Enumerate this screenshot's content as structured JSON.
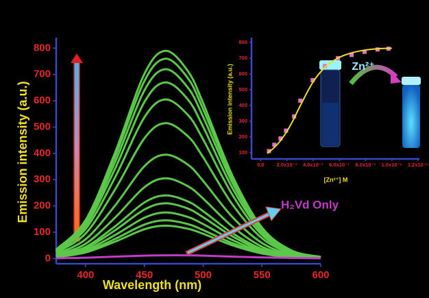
{
  "chart_data": [
    {
      "type": "line",
      "x_label": "Wavelength (nm)",
      "y_label": "Emission intensity (a.u.)",
      "x": [
        375,
        400,
        425,
        450,
        468,
        487,
        500,
        525,
        550,
        575,
        600
      ],
      "xlim": [
        375,
        600
      ],
      "xticks": [
        400,
        450,
        500,
        550,
        600
      ],
      "ylim": [
        -20,
        840
      ],
      "yticks": [
        0,
        100,
        200,
        300,
        400,
        500,
        600,
        700,
        800
      ],
      "grid": false,
      "series": [
        {
          "color": "#5cc84a",
          "values": [
            34,
            146,
            402,
            702,
            790,
            713,
            591,
            314,
            118,
            31,
            6
          ]
        },
        {
          "color": "#5cc84a",
          "values": [
            32,
            141,
            387,
            675,
            760,
            686,
            568,
            302,
            113,
            30,
            5
          ]
        },
        {
          "color": "#5cc84a",
          "values": [
            31,
            133,
            366,
            639,
            720,
            650,
            539,
            287,
            107,
            28,
            5
          ]
        },
        {
          "color": "#5cc84a",
          "values": [
            28,
            124,
            341,
            595,
            670,
            605,
            501,
            267,
            100,
            26,
            5
          ]
        },
        {
          "color": "#5cc84a",
          "values": [
            26,
            112,
            308,
            537,
            605,
            546,
            453,
            241,
            90,
            24,
            4
          ]
        },
        {
          "color": "#5cc84a",
          "values": [
            22,
            95,
            262,
            457,
            515,
            465,
            385,
            205,
            77,
            20,
            4
          ]
        },
        {
          "color": "#5cc84a",
          "values": [
            17,
            73,
            201,
            351,
            395,
            357,
            295,
            157,
            59,
            15,
            3
          ]
        },
        {
          "color": "#5cc84a",
          "values": [
            13,
            56,
            155,
            271,
            305,
            275,
            228,
            121,
            45,
            12,
            2
          ]
        },
        {
          "color": "#5cc84a",
          "values": [
            10,
            44,
            122,
            213,
            240,
            217,
            180,
            96,
            36,
            9,
            2
          ]
        },
        {
          "color": "#5cc84a",
          "values": [
            9,
            39,
            107,
            186,
            210,
            190,
            157,
            84,
            31,
            8,
            2
          ]
        },
        {
          "color": "#5cc84a",
          "values": [
            7,
            32,
            89,
            155,
            175,
            158,
            131,
            70,
            26,
            7,
            1
          ]
        },
        {
          "color": "#5cc84a",
          "values": [
            6,
            27,
            74,
            129,
            145,
            131,
            108,
            58,
            22,
            6,
            1
          ]
        },
        {
          "color": "#5cc84a",
          "values": [
            5,
            23,
            64,
            111,
            125,
            113,
            94,
            50,
            19,
            5,
            1
          ]
        },
        {
          "name": "H₂Vd Only",
          "color": "#c23cc8",
          "values": [
            1,
            3,
            7,
            11,
            12,
            12,
            11,
            7,
            4,
            2,
            1
          ]
        }
      ]
    },
    {
      "type": "scatter",
      "x_label": "[Zn²⁺] M",
      "y_label": "Emission intensity (a.u.)",
      "annotation": "Zn²⁺",
      "xlim": [
        -7e-08,
        1.21e-06
      ],
      "xticks": [
        {
          "value": 0,
          "label": "0.0"
        },
        {
          "value": 2e-07,
          "label": "2.0x10⁻⁷"
        },
        {
          "value": 4e-07,
          "label": "4.0x10⁻⁷"
        },
        {
          "value": 6e-07,
          "label": "6.0x10⁻⁷"
        },
        {
          "value": 8e-07,
          "label": "8.0x10⁻⁷"
        },
        {
          "value": 1e-06,
          "label": "1.0x10⁻⁶"
        },
        {
          "value": 1.2e-06,
          "label": "1.2x10⁻⁶"
        }
      ],
      "ylim": [
        60,
        830
      ],
      "yticks": [
        100,
        200,
        300,
        400,
        500,
        600,
        700,
        800
      ],
      "grid": false,
      "series": [
        {
          "type": "scatter",
          "color": "#e070c8",
          "x": [
            6.3e-08,
            1.04e-07,
            1.51e-07,
            1.93e-07,
            2.55e-07,
            3.02e-07,
            3.96e-07,
            4.9e-07,
            5.89e-07,
            6.93e-07,
            7.92e-07,
            8.91e-07,
            9.74e-07
          ],
          "values": [
            110,
            150,
            190,
            240,
            330,
            430,
            560,
            650,
            700,
            720,
            740,
            755,
            760
          ]
        },
        {
          "type": "line",
          "color": "#f0e020",
          "x": [
            5e-08,
            1e-07,
            1.5e-07,
            2e-07,
            2.5e-07,
            3e-07,
            4e-07,
            5e-07,
            6e-07,
            7e-07,
            8e-07,
            9e-07,
            1e-06
          ],
          "values": [
            95,
            130,
            175,
            235,
            310,
            395,
            550,
            650,
            705,
            735,
            752,
            760,
            763
          ]
        }
      ]
    }
  ]
}
